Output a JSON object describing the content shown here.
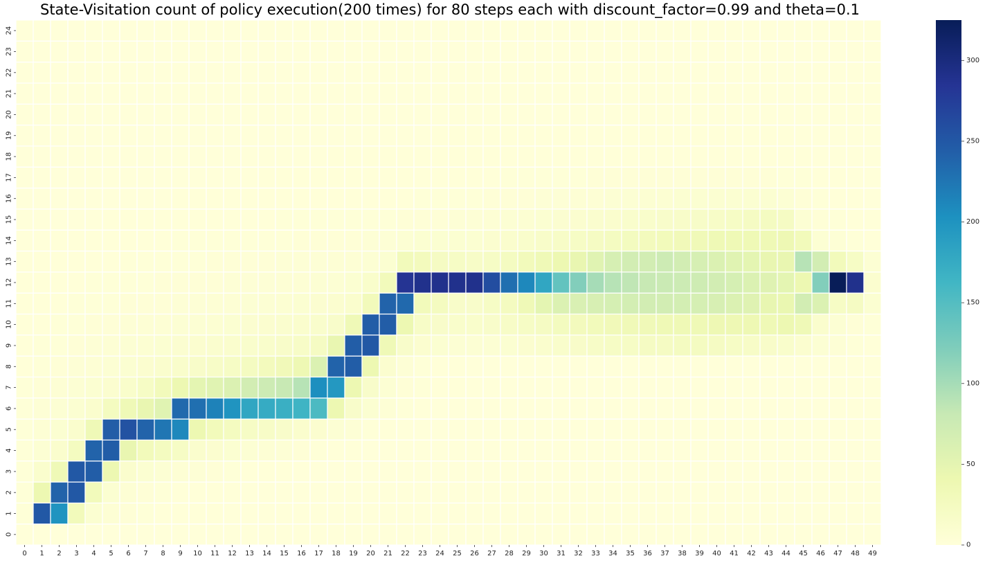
{
  "chart_data": {
    "type": "heatmap",
    "title": "State-Visitation count of policy execution(200 times) for 80 steps each with discount_factor=0.99 and theta=0.1",
    "xlabel": "",
    "ylabel": "",
    "x_ticks": [
      "0",
      "1",
      "2",
      "3",
      "4",
      "5",
      "6",
      "7",
      "8",
      "9",
      "10",
      "11",
      "12",
      "13",
      "14",
      "15",
      "16",
      "17",
      "18",
      "19",
      "20",
      "21",
      "22",
      "23",
      "24",
      "25",
      "26",
      "27",
      "28",
      "29",
      "30",
      "31",
      "32",
      "33",
      "34",
      "35",
      "36",
      "37",
      "38",
      "39",
      "40",
      "41",
      "42",
      "43",
      "44",
      "45",
      "46",
      "47",
      "48",
      "49"
    ],
    "y_ticks": [
      "0",
      "1",
      "2",
      "3",
      "4",
      "5",
      "6",
      "7",
      "8",
      "9",
      "10",
      "11",
      "12",
      "13",
      "14",
      "15",
      "16",
      "17",
      "18",
      "19",
      "20",
      "21",
      "22",
      "23",
      "24"
    ],
    "colorbar": {
      "min": 0,
      "max": 325,
      "ticks": [
        0,
        50,
        100,
        150,
        200,
        250,
        300
      ],
      "colormap": "YlGnBu"
    },
    "rows": [
      {
        "y": 0,
        "values": [
          0,
          0,
          0,
          0,
          0,
          0,
          0,
          0,
          0,
          0,
          0,
          0,
          0,
          0,
          0,
          0,
          0,
          0,
          0,
          0,
          0,
          0,
          0,
          0,
          0,
          0,
          0,
          0,
          0,
          0,
          0,
          0,
          0,
          0,
          0,
          0,
          0,
          0,
          0,
          0,
          0,
          0,
          0,
          0,
          0,
          0,
          0,
          0,
          0,
          0
        ]
      },
      {
        "y": 1,
        "values": [
          2,
          250,
          200,
          30,
          8,
          5,
          3,
          2,
          1,
          1,
          1,
          1,
          0,
          0,
          0,
          0,
          0,
          0,
          0,
          0,
          0,
          0,
          0,
          0,
          0,
          0,
          0,
          0,
          0,
          0,
          0,
          0,
          0,
          0,
          0,
          0,
          0,
          0,
          0,
          0,
          0,
          0,
          0,
          0,
          0,
          0,
          0,
          0,
          0,
          0
        ]
      },
      {
        "y": 2,
        "values": [
          2,
          40,
          240,
          250,
          30,
          8,
          5,
          3,
          2,
          1,
          1,
          1,
          1,
          0,
          0,
          0,
          0,
          0,
          0,
          0,
          0,
          0,
          0,
          0,
          0,
          0,
          0,
          0,
          0,
          0,
          0,
          0,
          0,
          0,
          0,
          0,
          0,
          0,
          0,
          0,
          0,
          0,
          0,
          0,
          0,
          0,
          0,
          0,
          0,
          0
        ]
      },
      {
        "y": 3,
        "values": [
          2,
          12,
          35,
          250,
          245,
          40,
          12,
          8,
          6,
          5,
          4,
          3,
          2,
          1,
          1,
          1,
          0,
          0,
          0,
          0,
          0,
          0,
          0,
          0,
          0,
          0,
          0,
          0,
          0,
          0,
          0,
          0,
          0,
          0,
          0,
          0,
          0,
          0,
          0,
          0,
          0,
          0,
          0,
          0,
          0,
          0,
          0,
          0,
          0,
          0
        ]
      },
      {
        "y": 4,
        "values": [
          2,
          6,
          12,
          25,
          240,
          245,
          45,
          30,
          25,
          20,
          12,
          10,
          8,
          6,
          5,
          4,
          3,
          2,
          1,
          1,
          0,
          0,
          0,
          0,
          0,
          0,
          0,
          0,
          0,
          0,
          0,
          0,
          0,
          0,
          0,
          0,
          0,
          0,
          0,
          0,
          0,
          0,
          0,
          0,
          0,
          0,
          0,
          0,
          0,
          0
        ]
      },
      {
        "y": 5,
        "values": [
          2,
          5,
          8,
          12,
          35,
          245,
          255,
          240,
          225,
          210,
          40,
          30,
          25,
          20,
          18,
          15,
          12,
          10,
          6,
          4,
          2,
          1,
          0,
          0,
          0,
          0,
          0,
          0,
          0,
          0,
          0,
          0,
          0,
          0,
          0,
          0,
          0,
          0,
          0,
          0,
          0,
          0,
          0,
          0,
          0,
          0,
          0,
          0,
          0,
          0
        ]
      },
      {
        "y": 6,
        "values": [
          2,
          4,
          6,
          8,
          12,
          25,
          35,
          45,
          55,
          235,
          230,
          215,
          200,
          180,
          175,
          170,
          165,
          155,
          40,
          15,
          8,
          4,
          2,
          1,
          0,
          0,
          0,
          0,
          0,
          0,
          0,
          0,
          0,
          0,
          0,
          0,
          0,
          0,
          0,
          0,
          0,
          0,
          0,
          0,
          0,
          0,
          0,
          0,
          0,
          0
        ]
      },
      {
        "y": 7,
        "values": [
          2,
          3,
          5,
          6,
          8,
          10,
          14,
          20,
          30,
          40,
          50,
          55,
          60,
          70,
          75,
          80,
          90,
          205,
          195,
          40,
          15,
          6,
          3,
          2,
          1,
          1,
          0,
          0,
          0,
          0,
          0,
          0,
          0,
          0,
          0,
          0,
          0,
          0,
          0,
          0,
          0,
          0,
          0,
          0,
          0,
          0,
          0,
          0,
          0,
          0
        ]
      },
      {
        "y": 8,
        "values": [
          1,
          2,
          3,
          4,
          5,
          6,
          8,
          10,
          12,
          14,
          16,
          18,
          20,
          24,
          28,
          32,
          38,
          60,
          240,
          245,
          40,
          10,
          4,
          2,
          1,
          1,
          0,
          0,
          0,
          0,
          0,
          0,
          0,
          0,
          0,
          0,
          0,
          0,
          0,
          0,
          0,
          0,
          0,
          0,
          0,
          0,
          0,
          0,
          0,
          0
        ]
      },
      {
        "y": 9,
        "values": [
          1,
          2,
          2,
          3,
          4,
          5,
          6,
          7,
          8,
          9,
          10,
          11,
          12,
          13,
          14,
          16,
          18,
          22,
          45,
          245,
          250,
          35,
          15,
          10,
          8,
          6,
          6,
          6,
          8,
          10,
          12,
          14,
          16,
          18,
          20,
          20,
          22,
          22,
          24,
          24,
          22,
          20,
          18,
          16,
          14,
          10,
          6,
          4,
          2,
          1
        ]
      },
      {
        "y": 10,
        "values": [
          1,
          1,
          2,
          2,
          3,
          3,
          4,
          5,
          5,
          6,
          6,
          7,
          8,
          9,
          10,
          11,
          12,
          13,
          15,
          35,
          245,
          245,
          40,
          18,
          15,
          14,
          14,
          15,
          18,
          20,
          22,
          26,
          28,
          30,
          32,
          34,
          34,
          36,
          36,
          36,
          38,
          38,
          38,
          36,
          40,
          35,
          12,
          6,
          3,
          2
        ]
      },
      {
        "y": 11,
        "values": [
          1,
          1,
          1,
          2,
          2,
          2,
          3,
          3,
          3,
          4,
          4,
          5,
          5,
          6,
          6,
          7,
          8,
          9,
          10,
          12,
          30,
          240,
          235,
          30,
          25,
          16,
          15,
          20,
          25,
          35,
          50,
          60,
          62,
          64,
          66,
          68,
          70,
          70,
          68,
          66,
          64,
          60,
          56,
          46,
          44,
          70,
          60,
          20,
          22,
          8
        ]
      },
      {
        "y": 12,
        "values": [
          1,
          1,
          1,
          1,
          2,
          2,
          2,
          2,
          3,
          3,
          3,
          3,
          4,
          4,
          4,
          5,
          5,
          6,
          6,
          8,
          14,
          30,
          285,
          290,
          290,
          290,
          290,
          260,
          230,
          210,
          180,
          140,
          120,
          100,
          90,
          85,
          80,
          78,
          76,
          74,
          70,
          66,
          60,
          56,
          50,
          40,
          120,
          325,
          290,
          10
        ]
      },
      {
        "y": 13,
        "values": [
          1,
          1,
          1,
          1,
          1,
          1,
          2,
          2,
          2,
          2,
          2,
          3,
          3,
          3,
          3,
          4,
          4,
          4,
          5,
          5,
          6,
          8,
          30,
          28,
          22,
          20,
          18,
          20,
          24,
          30,
          35,
          40,
          45,
          55,
          65,
          70,
          70,
          75,
          70,
          65,
          60,
          55,
          50,
          45,
          45,
          90,
          70,
          30,
          20,
          6
        ]
      },
      {
        "y": 14,
        "values": [
          0,
          0,
          1,
          1,
          1,
          1,
          1,
          1,
          1,
          2,
          2,
          2,
          2,
          2,
          2,
          2,
          3,
          3,
          3,
          3,
          4,
          4,
          6,
          8,
          8,
          8,
          8,
          10,
          12,
          14,
          16,
          18,
          20,
          22,
          24,
          26,
          28,
          30,
          32,
          34,
          36,
          36,
          36,
          36,
          38,
          30,
          6,
          4,
          2,
          1
        ]
      },
      {
        "y": 15,
        "values": [
          0,
          0,
          0,
          0,
          0,
          1,
          1,
          1,
          1,
          1,
          1,
          1,
          1,
          1,
          1,
          2,
          2,
          2,
          2,
          2,
          2,
          2,
          3,
          3,
          3,
          4,
          4,
          5,
          6,
          7,
          8,
          9,
          10,
          11,
          12,
          13,
          14,
          15,
          16,
          17,
          18,
          20,
          22,
          24,
          22,
          6,
          3,
          2,
          1,
          1
        ]
      },
      {
        "y": 16,
        "values": [
          0,
          0,
          0,
          0,
          0,
          0,
          0,
          0,
          0,
          1,
          1,
          1,
          1,
          1,
          1,
          1,
          1,
          1,
          1,
          1,
          1,
          1,
          1,
          2,
          2,
          2,
          2,
          3,
          3,
          3,
          4,
          4,
          5,
          5,
          6,
          6,
          7,
          7,
          8,
          8,
          8,
          8,
          8,
          8,
          6,
          3,
          2,
          1,
          1,
          0
        ]
      },
      {
        "y": 17,
        "values": [
          0,
          0,
          0,
          0,
          0,
          0,
          0,
          0,
          0,
          0,
          0,
          0,
          0,
          0,
          1,
          1,
          1,
          1,
          1,
          1,
          1,
          1,
          1,
          1,
          1,
          1,
          1,
          1,
          2,
          2,
          2,
          2,
          2,
          3,
          3,
          3,
          3,
          3,
          3,
          3,
          3,
          3,
          3,
          3,
          2,
          2,
          1,
          1,
          0,
          0
        ]
      },
      {
        "y": 18,
        "values": [
          0,
          0,
          0,
          0,
          0,
          0,
          0,
          0,
          0,
          0,
          0,
          0,
          0,
          0,
          0,
          0,
          0,
          0,
          1,
          1,
          1,
          1,
          1,
          1,
          1,
          1,
          1,
          1,
          1,
          1,
          1,
          1,
          1,
          1,
          1,
          1,
          1,
          1,
          1,
          1,
          1,
          1,
          1,
          1,
          1,
          1,
          0,
          0,
          0,
          0
        ]
      },
      {
        "y": 19,
        "values": [
          0,
          0,
          0,
          0,
          0,
          0,
          0,
          0,
          0,
          0,
          0,
          0,
          0,
          0,
          0,
          0,
          0,
          0,
          0,
          0,
          0,
          0,
          0,
          0,
          1,
          1,
          1,
          1,
          1,
          1,
          1,
          1,
          1,
          1,
          1,
          1,
          1,
          1,
          1,
          1,
          1,
          1,
          1,
          1,
          1,
          0,
          0,
          0,
          0,
          0
        ]
      },
      {
        "y": 20,
        "values": [
          0,
          0,
          0,
          0,
          0,
          0,
          0,
          0,
          0,
          0,
          0,
          0,
          0,
          0,
          0,
          0,
          0,
          0,
          0,
          0,
          0,
          0,
          0,
          0,
          0,
          0,
          0,
          0,
          0,
          0,
          0,
          0,
          0,
          0,
          0,
          0,
          0,
          0,
          0,
          0,
          0,
          0,
          0,
          0,
          0,
          0,
          0,
          0,
          0,
          0
        ]
      },
      {
        "y": 21,
        "values": [
          0,
          0,
          0,
          0,
          0,
          0,
          0,
          0,
          0,
          0,
          0,
          0,
          0,
          0,
          0,
          0,
          0,
          0,
          0,
          0,
          0,
          0,
          0,
          0,
          0,
          0,
          0,
          0,
          0,
          0,
          0,
          0,
          0,
          0,
          0,
          0,
          0,
          0,
          0,
          0,
          0,
          0,
          0,
          0,
          0,
          0,
          0,
          0,
          0,
          0
        ]
      },
      {
        "y": 22,
        "values": [
          0,
          0,
          0,
          0,
          0,
          0,
          0,
          0,
          0,
          0,
          0,
          0,
          0,
          0,
          0,
          0,
          0,
          0,
          0,
          0,
          0,
          0,
          0,
          0,
          0,
          0,
          0,
          0,
          0,
          0,
          0,
          0,
          0,
          0,
          0,
          0,
          0,
          0,
          0,
          0,
          0,
          0,
          0,
          0,
          0,
          0,
          0,
          0,
          0,
          0
        ]
      },
      {
        "y": 23,
        "values": [
          0,
          0,
          0,
          0,
          0,
          0,
          0,
          0,
          0,
          0,
          0,
          0,
          0,
          0,
          0,
          0,
          0,
          0,
          0,
          0,
          0,
          0,
          0,
          0,
          0,
          0,
          0,
          0,
          0,
          0,
          0,
          0,
          0,
          0,
          0,
          0,
          0,
          0,
          0,
          0,
          0,
          0,
          0,
          0,
          0,
          0,
          0,
          0,
          0,
          0
        ]
      },
      {
        "y": 24,
        "values": [
          0,
          0,
          0,
          0,
          0,
          0,
          0,
          0,
          0,
          0,
          0,
          0,
          0,
          0,
          0,
          0,
          0,
          0,
          0,
          0,
          0,
          0,
          0,
          0,
          0,
          0,
          0,
          0,
          0,
          0,
          0,
          0,
          0,
          0,
          0,
          0,
          0,
          0,
          0,
          0,
          0,
          0,
          0,
          0,
          0,
          0,
          0,
          0,
          0,
          0
        ]
      }
    ]
  }
}
